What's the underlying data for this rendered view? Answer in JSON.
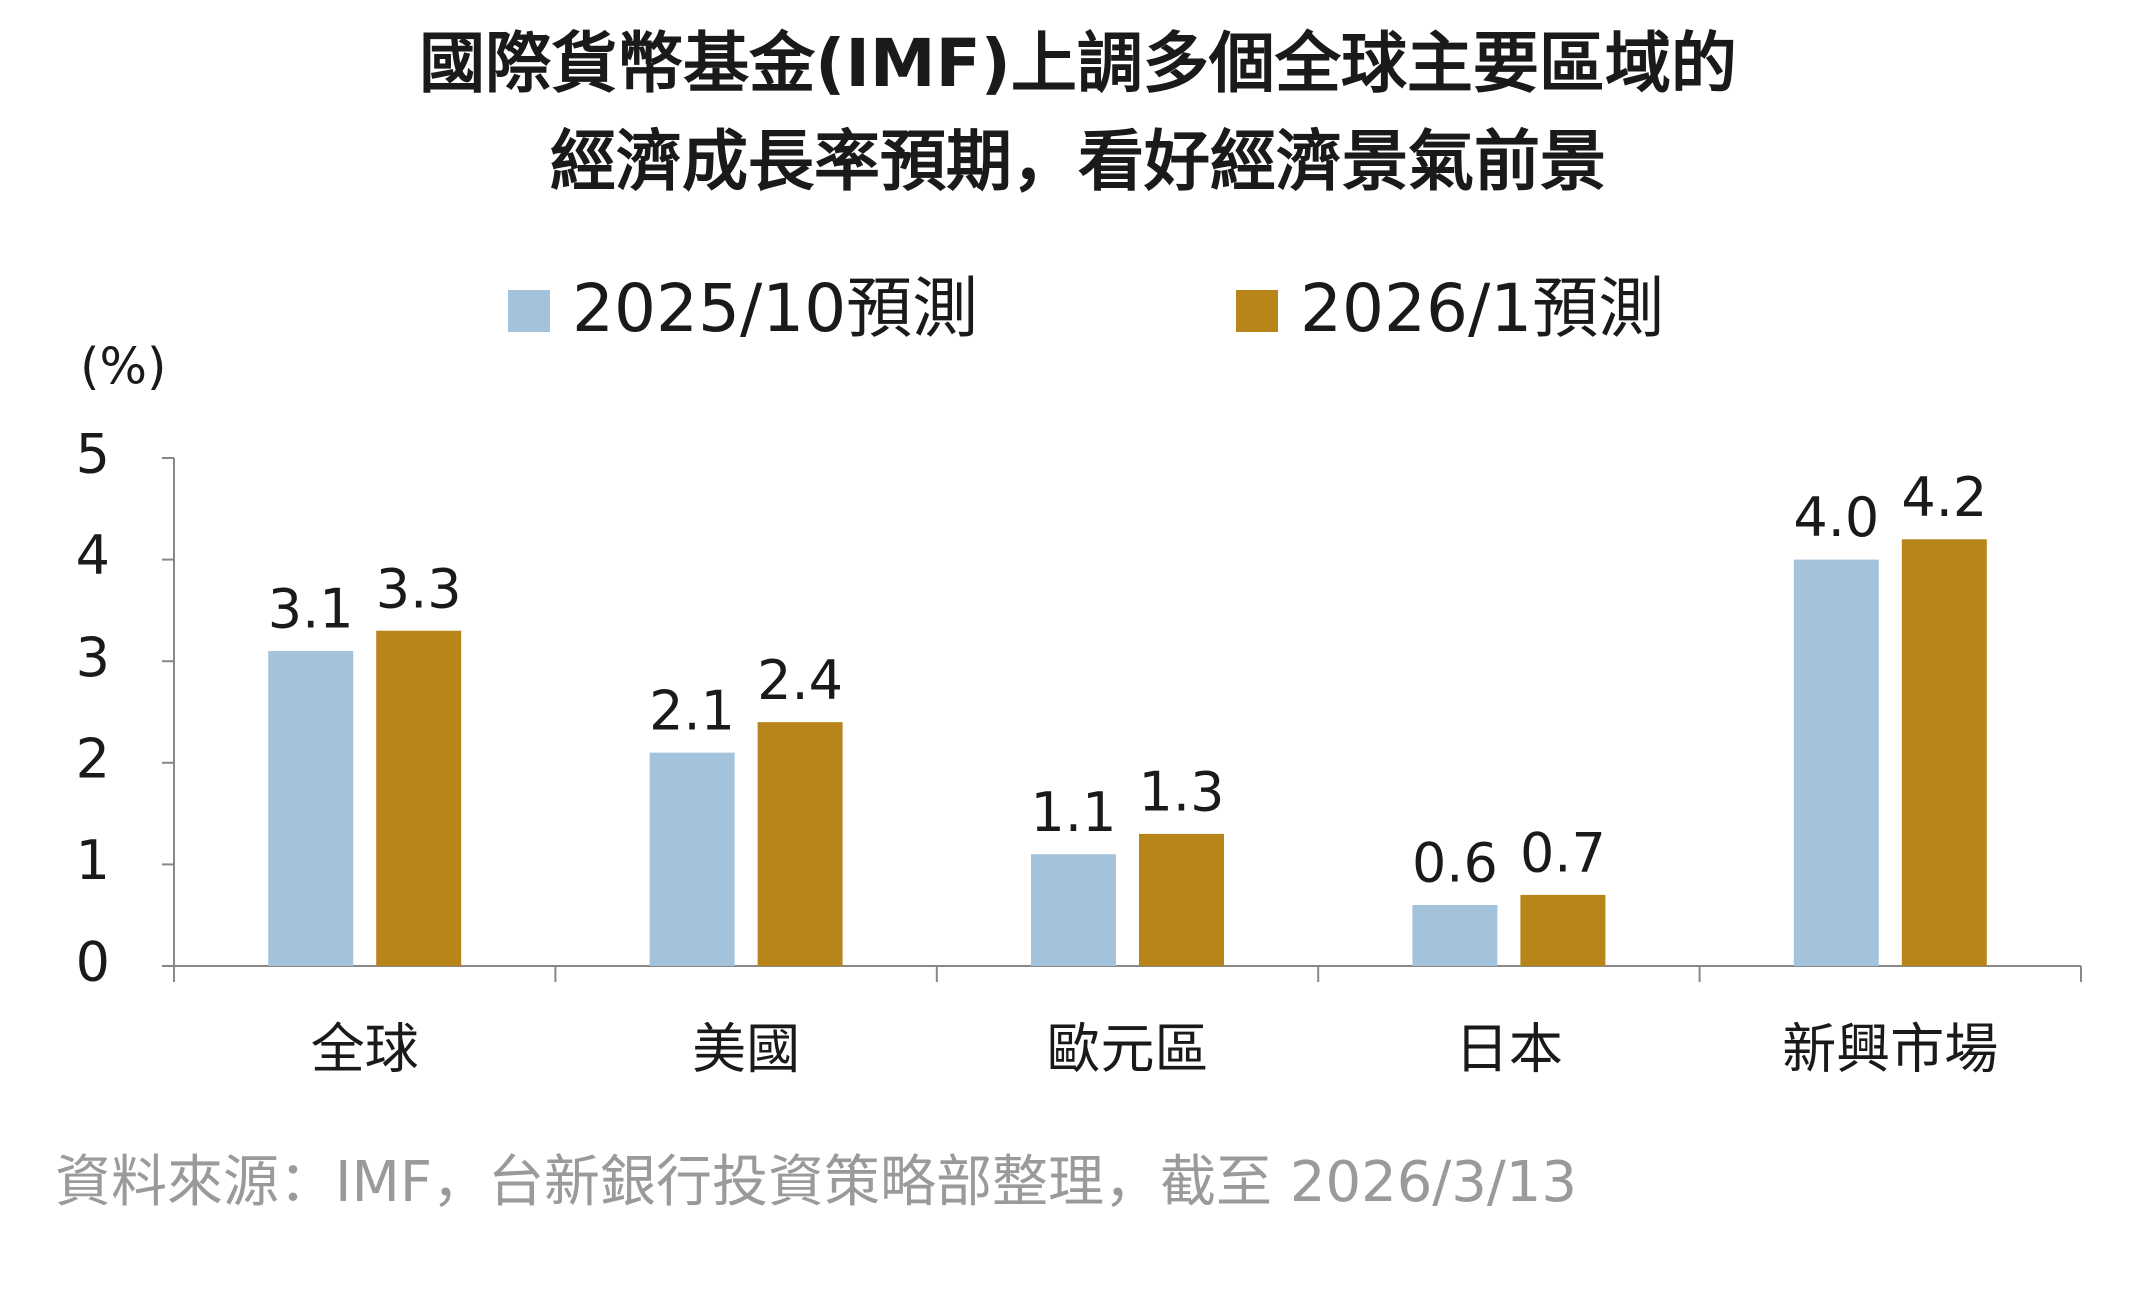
{
  "chart_data": {
    "type": "bar",
    "title": [
      "國際貨幣基金(IMF)上調多個全球主要區域的",
      "經濟成長率預期，看好經濟景氣前景"
    ],
    "y_label": "(%)",
    "categories": [
      "全球",
      "美國",
      "歐元區",
      "日本",
      "新興市場"
    ],
    "series": [
      {
        "name": "2025/10預測",
        "color": "#a3c3dc",
        "values": [
          3.1,
          2.1,
          1.1,
          0.6,
          4.0
        ],
        "value_labels": [
          "3.1",
          "2.1",
          "1.1",
          "0.6",
          "4.0"
        ]
      },
      {
        "name": "2026/1預測",
        "color": "#b8851b",
        "values": [
          3.3,
          2.4,
          1.3,
          0.7,
          4.2
        ],
        "value_labels": [
          "3.3",
          "2.4",
          "1.3",
          "0.7",
          "4.2"
        ]
      }
    ],
    "ylim": [
      0,
      5
    ],
    "yticks": [
      0,
      1,
      2,
      3,
      4,
      5
    ],
    "grid": false,
    "source": "資料來源：IMF，台新銀行投資策略部整理，截至 2026/3/13"
  }
}
